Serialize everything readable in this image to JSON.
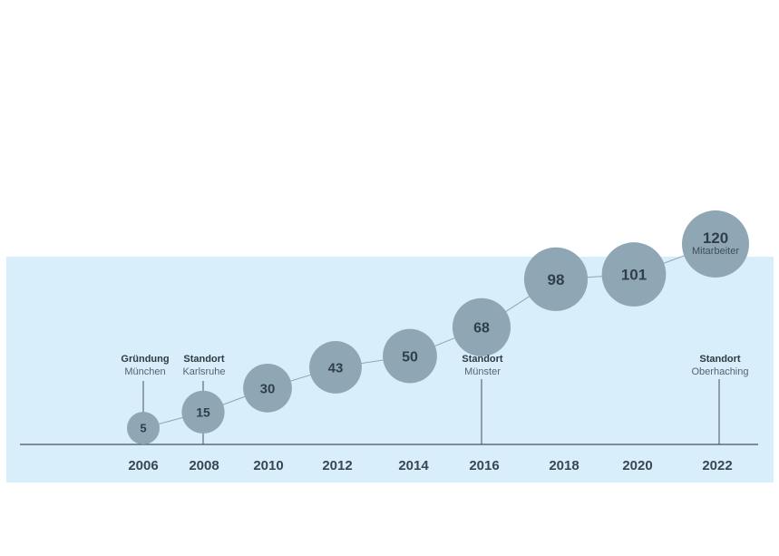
{
  "colors": {
    "panel": "#d8eefb",
    "bubble": "#8fa7b5",
    "connector": "#8fa4b0",
    "axis": "#44525c",
    "bubble_text": "#2f3f4a"
  },
  "chart_data": {
    "type": "scatter",
    "title": "",
    "xlabel": "",
    "ylabel": "",
    "x_ticks": [
      "2006",
      "2008",
      "2010",
      "2012",
      "2014",
      "2016",
      "2018",
      "2020",
      "2022"
    ],
    "series": [
      {
        "points": [
          {
            "year": 2006,
            "value": 5
          },
          {
            "year": 2008,
            "value": 15
          },
          {
            "year": 2010,
            "value": 30
          },
          {
            "year": 2012,
            "value": 43
          },
          {
            "year": 2014,
            "value": 50
          },
          {
            "year": 2016,
            "value": 68
          },
          {
            "year": 2018,
            "value": 98
          },
          {
            "year": 2020,
            "value": 101
          },
          {
            "year": 2022,
            "value": 120,
            "unit": "Mitarbeiter"
          }
        ]
      }
    ],
    "events": [
      {
        "year": 2006,
        "title": "Gründung",
        "subtitle": "München"
      },
      {
        "year": 2008,
        "title": "Standort",
        "subtitle": "Karlsruhe"
      },
      {
        "year": 2016,
        "title": "Standort",
        "subtitle": "Münster"
      },
      {
        "year": 2022,
        "title": "Standort",
        "subtitle": "Oberhaching"
      }
    ],
    "legend": "none",
    "grid": false
  }
}
